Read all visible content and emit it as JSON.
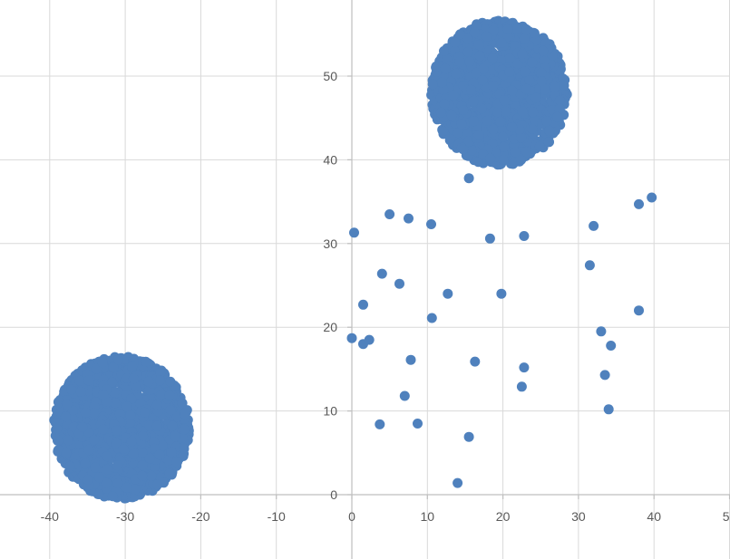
{
  "chart_data": {
    "type": "scatter",
    "title": "",
    "xlabel": "",
    "ylabel": "",
    "xlim": [
      -45,
      50
    ],
    "ylim": [
      -7,
      59
    ],
    "x_ticks": [
      -40,
      -30,
      -20,
      -10,
      0,
      10,
      20,
      30,
      40,
      50
    ],
    "y_ticks": [
      0,
      10,
      20,
      30,
      40,
      50
    ],
    "x_tick_labels": [
      "-40",
      "-30",
      "-20",
      "-10",
      "0",
      "10",
      "20",
      "30",
      "40",
      "50"
    ],
    "y_tick_labels": [
      "0",
      "10",
      "20",
      "30",
      "40",
      "50"
    ],
    "grid": true,
    "legend": "none",
    "color": "#4f81bd",
    "clusters": [
      {
        "center": [
          -30.5,
          8
        ],
        "radius": [
          9,
          8.5
        ],
        "count": 1500
      },
      {
        "center": [
          19.5,
          48
        ],
        "radius": [
          9,
          8.7
        ],
        "count": 1500
      }
    ],
    "scattered_points": [
      [
        15.5,
        37.8
      ],
      [
        5,
        33.5
      ],
      [
        7.5,
        33
      ],
      [
        10.5,
        32.3
      ],
      [
        0.3,
        31.3
      ],
      [
        18.3,
        30.6
      ],
      [
        22.8,
        30.9
      ],
      [
        32,
        32.1
      ],
      [
        38,
        34.7
      ],
      [
        39.7,
        35.5
      ],
      [
        31.5,
        27.4
      ],
      [
        4,
        26.4
      ],
      [
        6.3,
        25.2
      ],
      [
        1.5,
        22.7
      ],
      [
        12.7,
        24
      ],
      [
        19.8,
        24
      ],
      [
        10.6,
        21.1
      ],
      [
        38,
        22
      ],
      [
        0,
        18.7
      ],
      [
        1.5,
        18
      ],
      [
        2.3,
        18.5
      ],
      [
        7.8,
        16.1
      ],
      [
        16.3,
        15.9
      ],
      [
        22.8,
        15.2
      ],
      [
        33,
        19.5
      ],
      [
        34.3,
        17.8
      ],
      [
        33.5,
        14.3
      ],
      [
        22.5,
        12.9
      ],
      [
        7,
        11.8
      ],
      [
        34,
        10.2
      ],
      [
        3.7,
        8.4
      ],
      [
        8.7,
        8.5
      ],
      [
        15.5,
        6.9
      ],
      [
        14,
        1.4
      ]
    ]
  }
}
